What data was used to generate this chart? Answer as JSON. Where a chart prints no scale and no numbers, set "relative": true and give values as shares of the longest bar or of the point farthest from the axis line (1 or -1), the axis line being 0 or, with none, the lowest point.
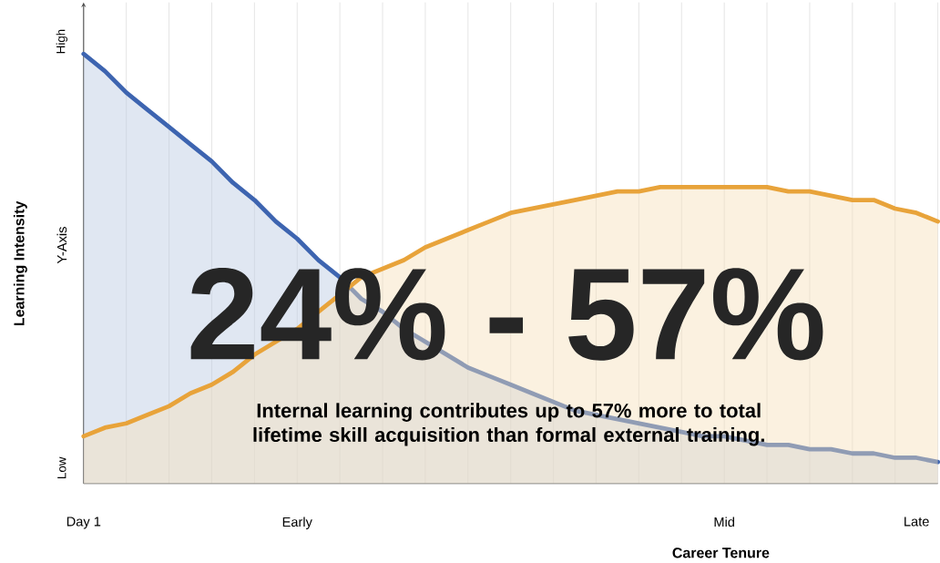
{
  "chart_data": {
    "type": "area",
    "relative": true,
    "xlabel": "Career Tenure",
    "ylabel": "Learning Intensity",
    "grid": true,
    "categories": [
      "Day 1",
      null,
      null,
      null,
      null,
      null,
      null,
      null,
      null,
      null,
      "Early",
      null,
      null,
      null,
      null,
      null,
      null,
      null,
      null,
      null,
      null,
      null,
      null,
      null,
      null,
      null,
      null,
      null,
      null,
      null,
      "Mid",
      null,
      null,
      null,
      null,
      null,
      null,
      null,
      null,
      "Late",
      null
    ],
    "series": [
      {
        "color": "#3d64b0",
        "values": [
          1.0,
          0.96,
          0.91,
          0.87,
          0.83,
          0.79,
          0.75,
          0.7,
          0.66,
          0.61,
          0.57,
          0.52,
          0.48,
          0.43,
          0.4,
          0.36,
          0.33,
          0.3,
          0.27,
          0.25,
          0.23,
          0.21,
          0.19,
          0.17,
          0.16,
          0.15,
          0.14,
          0.13,
          0.12,
          0.11,
          0.11,
          0.1,
          0.09,
          0.09,
          0.08,
          0.08,
          0.07,
          0.07,
          0.06,
          0.06,
          0.05
        ]
      },
      {
        "color": "#e8a33a",
        "values": [
          0.11,
          0.13,
          0.14,
          0.16,
          0.18,
          0.21,
          0.23,
          0.26,
          0.3,
          0.33,
          0.36,
          0.4,
          0.44,
          0.48,
          0.5,
          0.52,
          0.55,
          0.57,
          0.59,
          0.61,
          0.63,
          0.64,
          0.65,
          0.66,
          0.67,
          0.68,
          0.68,
          0.69,
          0.69,
          0.69,
          0.69,
          0.69,
          0.69,
          0.68,
          0.68,
          0.67,
          0.66,
          0.66,
          0.64,
          0.63,
          0.61
        ]
      }
    ],
    "annotations": [
      "24% - 57%",
      "Internal learning contributes up to 57% more to total lifetime skill acquisition than formal external training.",
      "Y-Axis",
      "High",
      "Low"
    ]
  }
}
